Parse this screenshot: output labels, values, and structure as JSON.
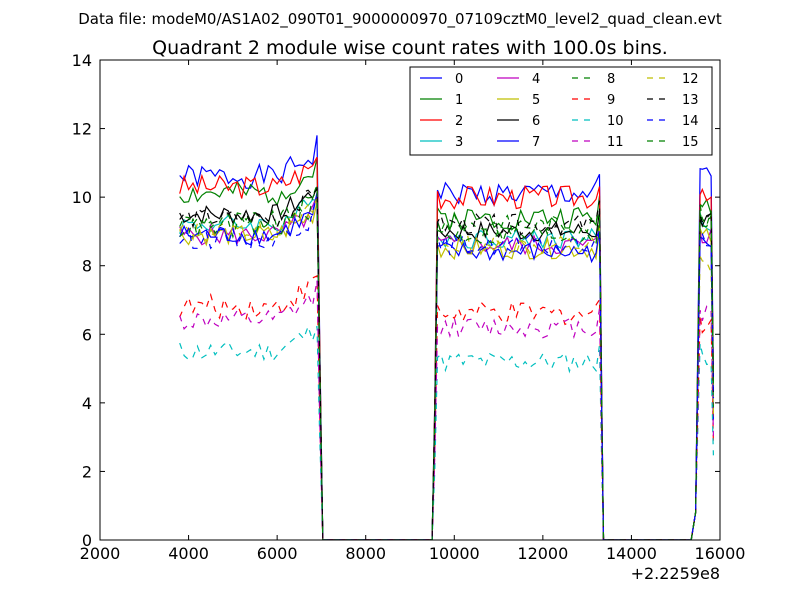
{
  "figure": {
    "suptitle": "Data file: modeM0/AS1A02_090T01_9000000970_07109cztM0_level2_quad_clean.evt",
    "x_offset_label": "+2.2259e8"
  },
  "chart_data": {
    "type": "line",
    "title": "Quadrant 2 module wise count rates with 100.0s bins.",
    "xlabel": "",
    "ylabel": "",
    "xlim": [
      2000,
      16000
    ],
    "ylim": [
      0,
      14
    ],
    "x_ticks": [
      "2000",
      "4000",
      "6000",
      "8000",
      "10000",
      "12000",
      "14000",
      "16000"
    ],
    "y_ticks": [
      "0",
      "2",
      "4",
      "6",
      "8",
      "10",
      "12",
      "14"
    ],
    "x_offset": "+2.2259e8",
    "grid": false,
    "legend": {
      "placement": "top-right",
      "columns": 4
    },
    "segments": [
      {
        "x_start": 3800,
        "x_end": 6800,
        "edge_x": [
          6900,
          6960,
          7030,
          7070
        ]
      },
      {
        "x_start": 9700,
        "x_end": 13200,
        "edge_x": [
          9500,
          9560,
          9620,
          9660,
          13280,
          13330,
          13370
        ]
      },
      {
        "x_start": 15600,
        "x_end": 15800,
        "edge_x": [
          15350,
          15450,
          15500,
          15550,
          15850
        ]
      }
    ],
    "series": [
      {
        "name": "0",
        "color": "#0000ff",
        "style": "solid",
        "level": [
          10.6,
          10.1,
          10.6
        ],
        "noise": 0.35,
        "seed": 1
      },
      {
        "name": "1",
        "color": "#008000",
        "style": "solid",
        "level": [
          10.1,
          9.4,
          9.8
        ],
        "noise": 0.35,
        "seed": 2
      },
      {
        "name": "2",
        "color": "#ff0000",
        "style": "solid",
        "level": [
          10.3,
          10.0,
          9.9
        ],
        "noise": 0.35,
        "seed": 3
      },
      {
        "name": "3",
        "color": "#00bfbf",
        "style": "solid",
        "level": [
          9.2,
          8.8,
          9.2
        ],
        "noise": 0.3,
        "seed": 4
      },
      {
        "name": "4",
        "color": "#bf00bf",
        "style": "solid",
        "level": [
          8.9,
          8.6,
          8.9
        ],
        "noise": 0.3,
        "seed": 5
      },
      {
        "name": "5",
        "color": "#bfbf00",
        "style": "solid",
        "level": [
          8.9,
          8.5,
          8.8
        ],
        "noise": 0.3,
        "seed": 6
      },
      {
        "name": "6",
        "color": "#000000",
        "style": "solid",
        "level": [
          9.5,
          9.0,
          9.3
        ],
        "noise": 0.3,
        "seed": 7
      },
      {
        "name": "7",
        "color": "#0000ff",
        "style": "solid",
        "level": [
          8.9,
          8.4,
          8.6
        ],
        "noise": 0.3,
        "seed": 8
      },
      {
        "name": "8",
        "color": "#008000",
        "style": "dashed",
        "level": [
          9.3,
          9.2,
          9.2
        ],
        "noise": 0.3,
        "seed": 9
      },
      {
        "name": "9",
        "color": "#ff0000",
        "style": "dashed",
        "level": [
          6.8,
          6.6,
          6.4
        ],
        "noise": 0.35,
        "seed": 10
      },
      {
        "name": "10",
        "color": "#00bfbf",
        "style": "dashed",
        "level": [
          5.5,
          5.2,
          5.4
        ],
        "noise": 0.3,
        "seed": 11
      },
      {
        "name": "11",
        "color": "#bf00bf",
        "style": "dashed",
        "level": [
          6.4,
          6.2,
          6.6
        ],
        "noise": 0.3,
        "seed": 12
      },
      {
        "name": "12",
        "color": "#bfbf00",
        "style": "dashed",
        "level": [
          9.0,
          8.6,
          8.0
        ],
        "noise": 0.3,
        "seed": 13
      },
      {
        "name": "13",
        "color": "#000000",
        "style": "dashed",
        "level": [
          9.4,
          9.2,
          9.4
        ],
        "noise": 0.3,
        "seed": 14
      },
      {
        "name": "14",
        "color": "#0000ff",
        "style": "dashed",
        "level": [
          8.8,
          8.6,
          8.7
        ],
        "noise": 0.3,
        "seed": 15
      },
      {
        "name": "15",
        "color": "#008000",
        "style": "dashed",
        "level": [
          9.1,
          8.9,
          9.4
        ],
        "noise": 0.3,
        "seed": 16
      }
    ]
  }
}
